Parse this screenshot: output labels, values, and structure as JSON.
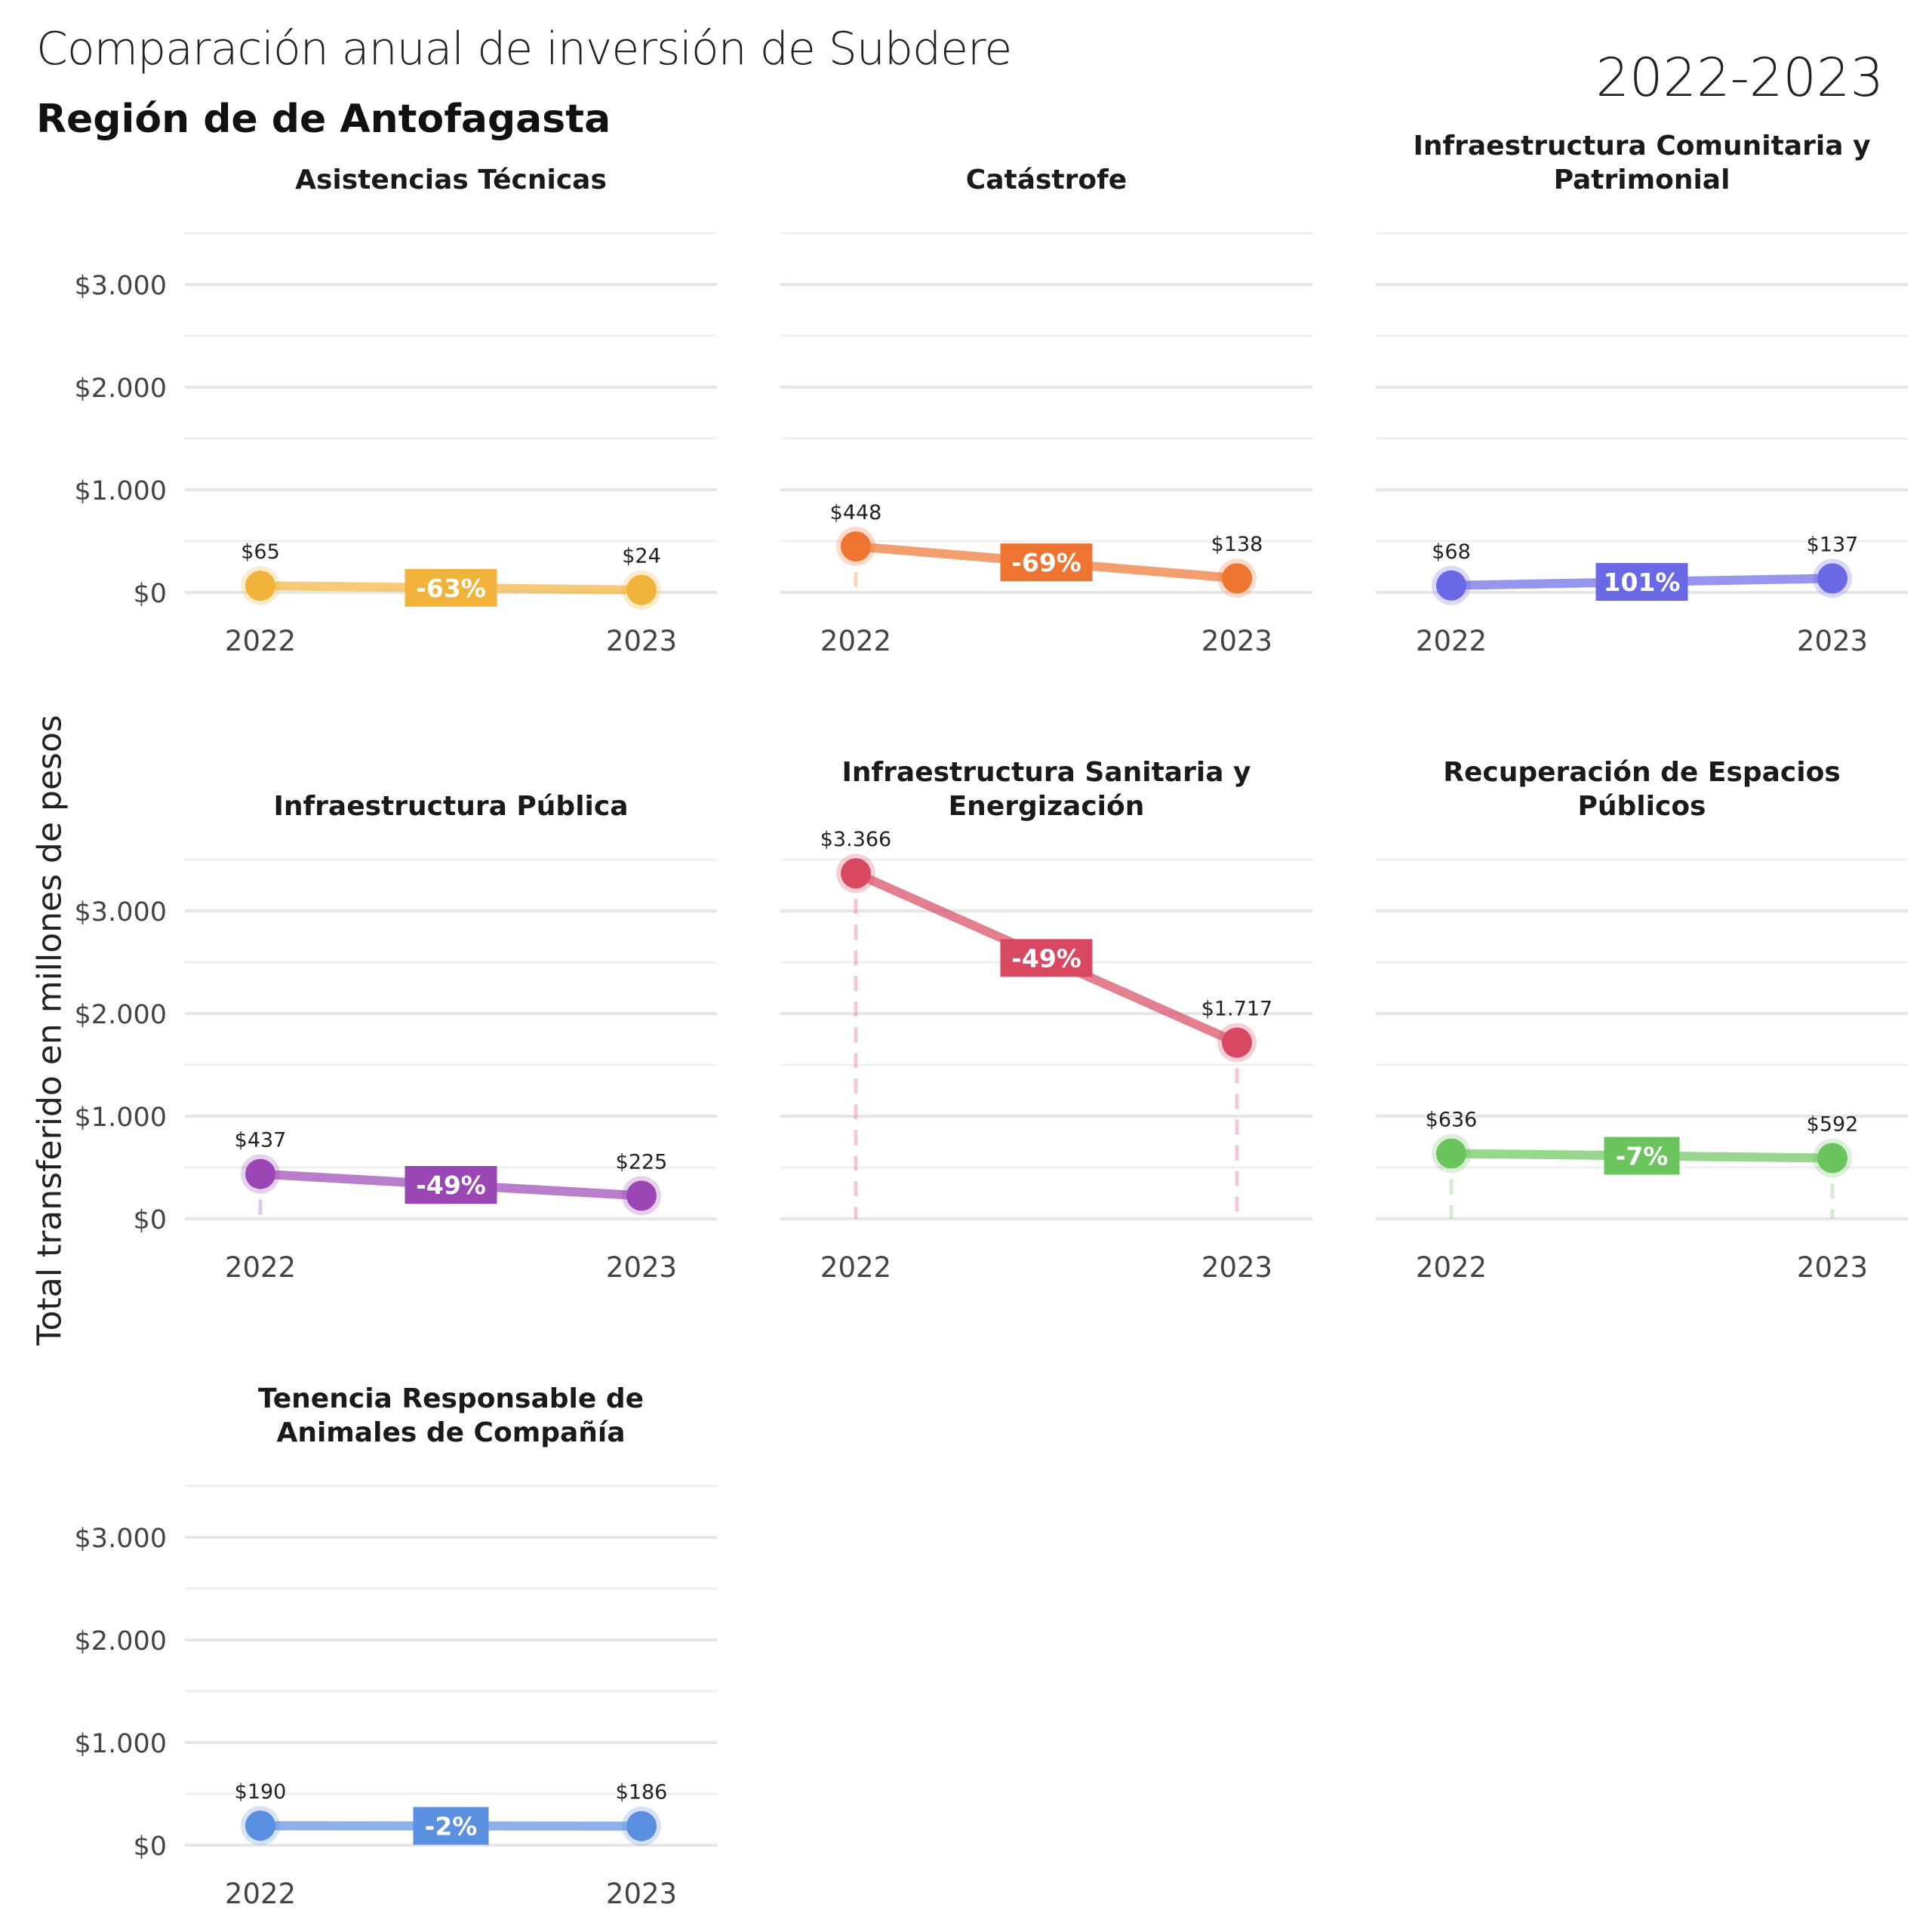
{
  "title": "Comparación anual de inversión de Subdere",
  "subtitle": "Región de de Antofagasta",
  "period": "2022-2023",
  "ylabel": "Total transferido en millones de pesos",
  "chart_data": {
    "type": "line",
    "x": [
      "2022",
      "2023"
    ],
    "ylim": [
      0,
      3500
    ],
    "yticks": [
      0,
      1000,
      2000,
      3000
    ],
    "ytick_labels": [
      "$0",
      "$1.000",
      "$2.000",
      "$3.000"
    ],
    "grid": true,
    "panels": [
      {
        "title": [
          "Asistencias Técnicas"
        ],
        "values": [
          65,
          24
        ],
        "labels": [
          "$65",
          "$24"
        ],
        "change": "-63%",
        "color": "#F2B33D"
      },
      {
        "title": [
          "Catástrofe"
        ],
        "values": [
          448,
          138
        ],
        "labels": [
          "$448",
          "$138"
        ],
        "change": "-69%",
        "color": "#EE7531"
      },
      {
        "title": [
          "Infraestructura Comunitaria y",
          "Patrimonial"
        ],
        "values": [
          68,
          137
        ],
        "labels": [
          "$68",
          "$137"
        ],
        "change": "101%",
        "color": "#6B68E6"
      },
      {
        "title": [
          "Infraestructura Pública"
        ],
        "values": [
          437,
          225
        ],
        "labels": [
          "$437",
          "$225"
        ],
        "change": "-49%",
        "color": "#9B46B5"
      },
      {
        "title": [
          "Infraestructura Sanitaria y",
          "Energización"
        ],
        "values": [
          3366,
          1717
        ],
        "labels": [
          "$3.366",
          "$1.717"
        ],
        "change": "-49%",
        "color": "#D94861"
      },
      {
        "title": [
          "Recuperación de Espacios",
          "Públicos"
        ],
        "values": [
          636,
          592
        ],
        "labels": [
          "$636",
          "$592"
        ],
        "change": "-7%",
        "color": "#6CC45E"
      },
      {
        "title": [
          "Tenencia Responsable de",
          "Animales de Compañía"
        ],
        "values": [
          190,
          186
        ],
        "labels": [
          "$190",
          "$186"
        ],
        "change": "-2%",
        "color": "#5B8FE0"
      }
    ]
  }
}
